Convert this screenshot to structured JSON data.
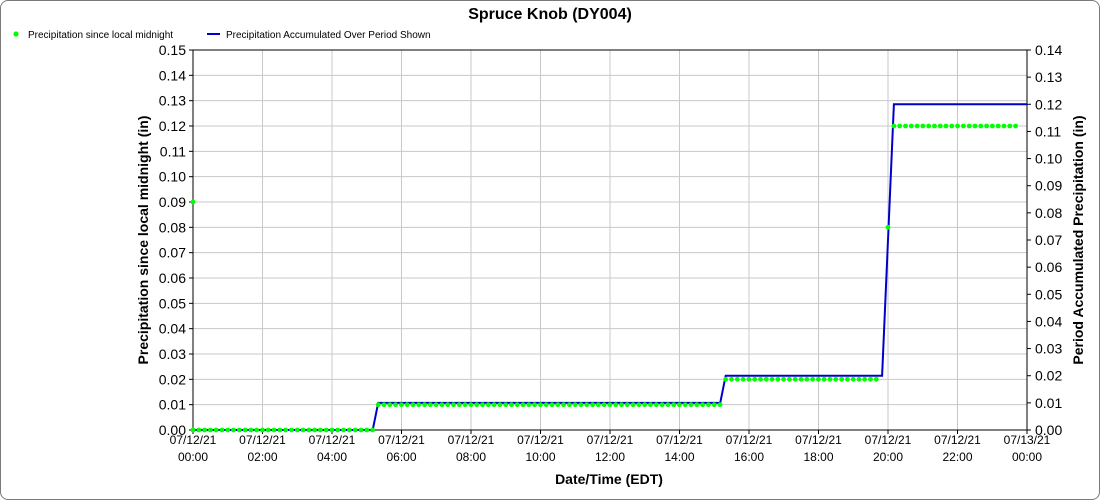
{
  "chart_data": {
    "type": "line",
    "title": "Spruce Knob (DY004)",
    "xlabel": "Date/Time (EDT)",
    "ylabel_left": "Precipitation since local midnight (in)",
    "ylabel_right": "Period Accumulated Precipitation (in)",
    "ylim_left": [
      0,
      0.15
    ],
    "ylim_right": [
      0,
      0.14
    ],
    "yticks_left": [
      "0.00",
      "0.01",
      "0.02",
      "0.03",
      "0.04",
      "0.05",
      "0.06",
      "0.07",
      "0.08",
      "0.09",
      "0.10",
      "0.11",
      "0.12",
      "0.13",
      "0.14",
      "0.15"
    ],
    "yticks_right": [
      "0.00",
      "0.01",
      "0.02",
      "0.03",
      "0.04",
      "0.05",
      "0.06",
      "0.07",
      "0.08",
      "0.09",
      "0.10",
      "0.11",
      "0.12",
      "0.13",
      "0.14"
    ],
    "xlim_hours": [
      0,
      24
    ],
    "xticks": [
      {
        "date": "07/12/21",
        "time": "00:00"
      },
      {
        "date": "07/12/21",
        "time": "02:00"
      },
      {
        "date": "07/12/21",
        "time": "04:00"
      },
      {
        "date": "07/12/21",
        "time": "06:00"
      },
      {
        "date": "07/12/21",
        "time": "08:00"
      },
      {
        "date": "07/12/21",
        "time": "10:00"
      },
      {
        "date": "07/12/21",
        "time": "12:00"
      },
      {
        "date": "07/12/21",
        "time": "14:00"
      },
      {
        "date": "07/12/21",
        "time": "16:00"
      },
      {
        "date": "07/12/21",
        "time": "18:00"
      },
      {
        "date": "07/12/21",
        "time": "20:00"
      },
      {
        "date": "07/12/21",
        "time": "22:00"
      },
      {
        "date": "07/13/21",
        "time": "00:00"
      }
    ],
    "grid": true,
    "legend_position": "top-left",
    "series": [
      {
        "name": "Precipitation since local midnight",
        "axis": "left",
        "style": "points",
        "color": "#00ff00",
        "segments": [
          {
            "from": 0.0,
            "to": 5.17,
            "step": 0.1667,
            "value": 0.0
          },
          {
            "from": 5.33,
            "to": 15.17,
            "step": 0.1667,
            "value": 0.01
          },
          {
            "from": 15.33,
            "to": 19.83,
            "step": 0.1667,
            "value": 0.02
          },
          {
            "from": 20.17,
            "to": 23.83,
            "step": 0.1667,
            "value": 0.12
          }
        ],
        "points": [
          {
            "x": 0.0,
            "y": 0.09
          },
          {
            "x": 20.0,
            "y": 0.08
          }
        ]
      },
      {
        "name": "Precipitation Accumulated Over Period Shown",
        "axis": "right",
        "style": "line",
        "color": "#0000cc",
        "points": [
          {
            "x": 0.0,
            "y": 0.0
          },
          {
            "x": 5.17,
            "y": 0.0
          },
          {
            "x": 5.33,
            "y": 0.01
          },
          {
            "x": 15.17,
            "y": 0.01
          },
          {
            "x": 15.33,
            "y": 0.02
          },
          {
            "x": 19.83,
            "y": 0.02
          },
          {
            "x": 20.0,
            "y": 0.07
          },
          {
            "x": 20.17,
            "y": 0.12
          },
          {
            "x": 24.0,
            "y": 0.12
          }
        ]
      }
    ]
  }
}
